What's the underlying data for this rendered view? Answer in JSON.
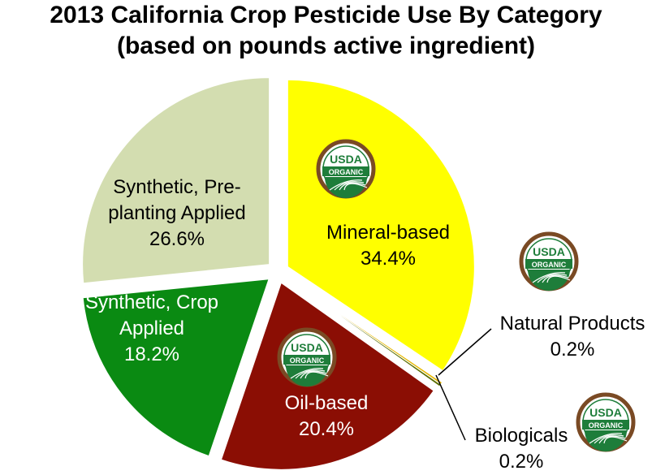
{
  "chart_data": {
    "type": "pie",
    "title": "2013 California Crop Pesticide Use By Category",
    "subtitle": "(based on pounds active ingredient)",
    "slices": [
      {
        "label_lines": [
          "Mineral-based"
        ],
        "value": 34.4,
        "value_text": "34.4%",
        "color": "#FFFF00",
        "badge": true
      },
      {
        "label_lines": [
          "Natural Products"
        ],
        "value": 0.2,
        "value_text": "0.2%",
        "color": "#E6B800",
        "badge": true
      },
      {
        "label_lines": [
          "Biologicals"
        ],
        "value": 0.2,
        "value_text": "0.2%",
        "color": "#5A6E00",
        "badge": true
      },
      {
        "label_lines": [
          "Oil-based"
        ],
        "value": 20.4,
        "value_text": "20.4%",
        "color": "#8B0E04",
        "badge": true
      },
      {
        "label_lines": [
          "Synthetic, Crop",
          "Applied"
        ],
        "value": 18.2,
        "value_text": "18.2%",
        "color": "#0A8A12",
        "badge": false
      },
      {
        "label_lines": [
          "Synthetic, Pre-",
          "planting Applied"
        ],
        "value": 26.6,
        "value_text": "26.6%",
        "color": "#D3DDB0",
        "badge": false
      }
    ],
    "label_text_colors": [
      "#000000",
      "#000000",
      "#000000",
      "#FFFFFF",
      "#FFFFFF",
      "#000000"
    ],
    "badge": {
      "top_text": "USDA",
      "bottom_text": "ORGANIC",
      "green": "#1E7D3A",
      "brown": "#7A4A24"
    }
  }
}
